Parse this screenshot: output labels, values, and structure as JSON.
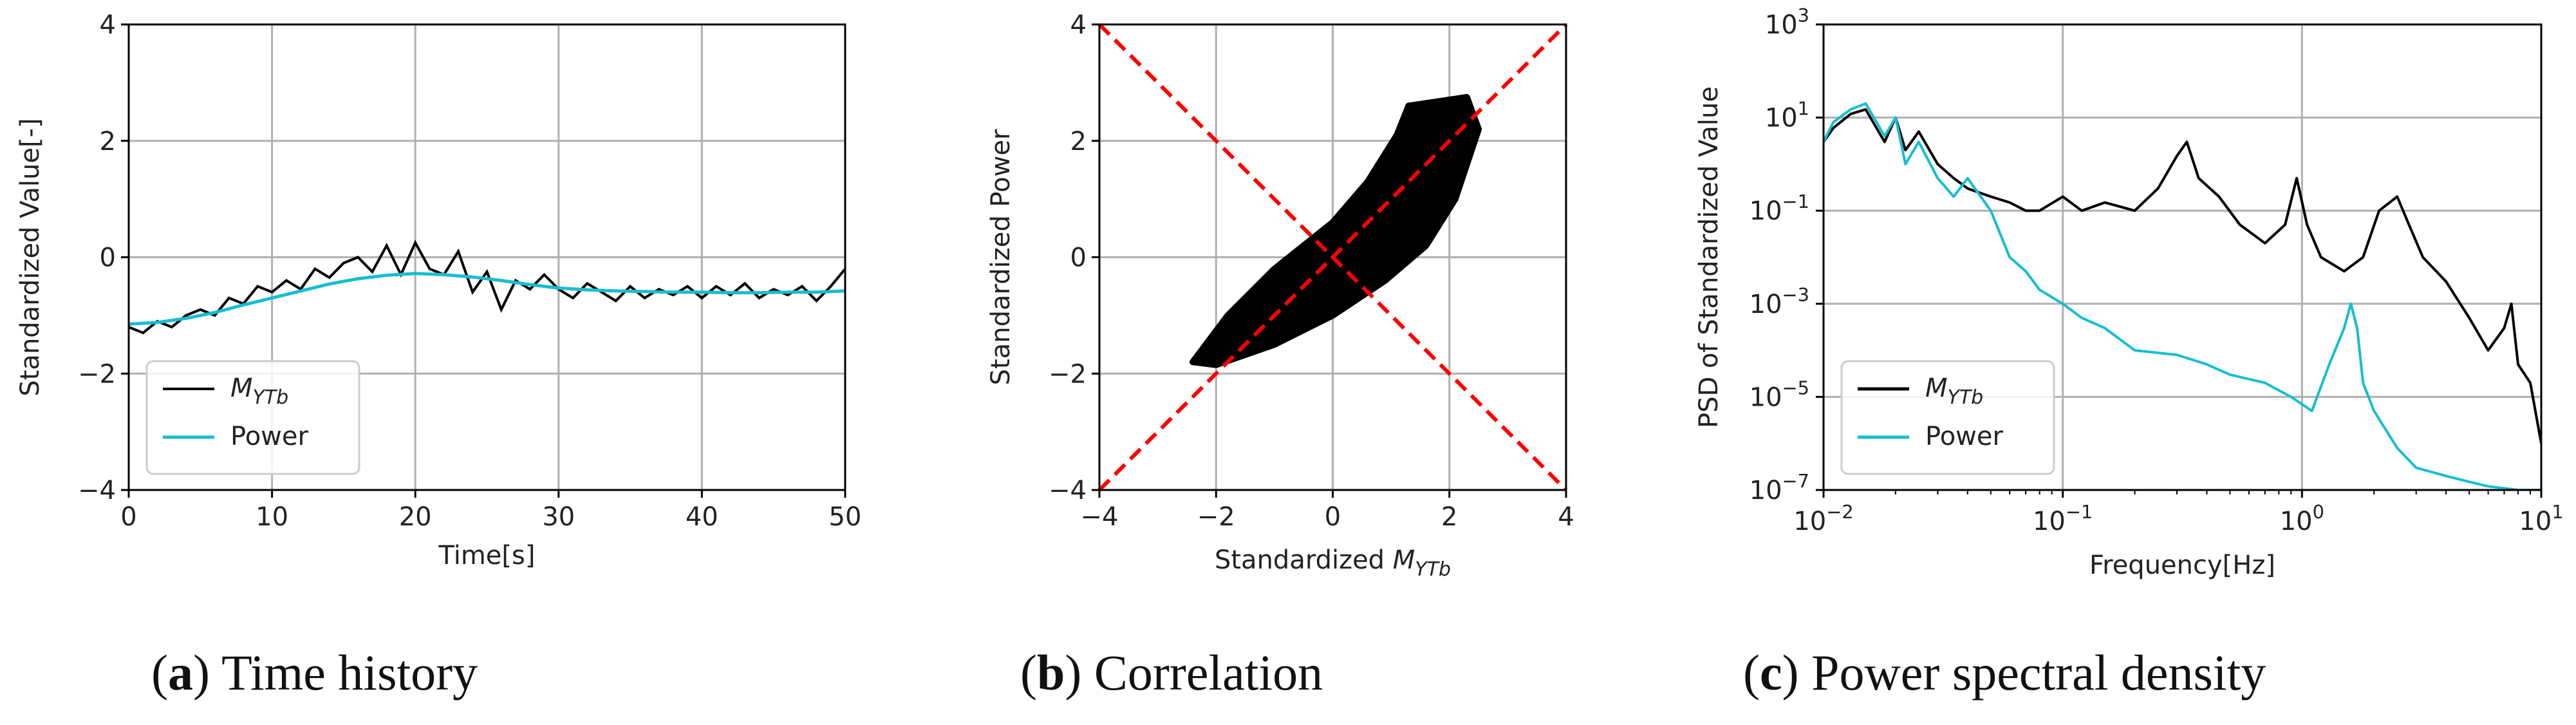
{
  "chart_data": [
    {
      "id": "a",
      "type": "line",
      "caption": {
        "letter": "a",
        "text": "Time history"
      },
      "xlabel": "Time[s]",
      "ylabel": "Standardized Value[-]",
      "xlim": [
        0,
        50
      ],
      "ylim": [
        -4,
        4
      ],
      "xticks": [
        0,
        10,
        20,
        30,
        40,
        50
      ],
      "yticks": [
        -4,
        -2,
        0,
        2,
        4
      ],
      "grid": true,
      "legend": {
        "position": "bottom-left",
        "entries": [
          {
            "label": "M",
            "sub": "YTb",
            "color": "#000000"
          },
          {
            "label": "Power",
            "color": "#17becf"
          }
        ]
      },
      "series": [
        {
          "name": "M_YTb",
          "color": "#000000",
          "x": [
            0,
            1,
            2,
            3,
            4,
            5,
            6,
            7,
            8,
            9,
            10,
            11,
            12,
            13,
            14,
            15,
            16,
            17,
            18,
            19,
            20,
            21,
            22,
            23,
            24,
            25,
            26,
            27,
            28,
            29,
            30,
            31,
            32,
            33,
            34,
            35,
            36,
            37,
            38,
            39,
            40,
            41,
            42,
            43,
            44,
            45,
            46,
            47,
            48,
            49,
            50
          ],
          "y": [
            -1.2,
            -1.3,
            -1.1,
            -1.2,
            -1.0,
            -0.9,
            -1.0,
            -0.7,
            -0.8,
            -0.5,
            -0.6,
            -0.4,
            -0.55,
            -0.2,
            -0.35,
            -0.1,
            0.0,
            -0.25,
            0.2,
            -0.3,
            0.25,
            -0.2,
            -0.3,
            0.1,
            -0.6,
            -0.25,
            -0.9,
            -0.4,
            -0.55,
            -0.3,
            -0.55,
            -0.7,
            -0.45,
            -0.6,
            -0.75,
            -0.5,
            -0.7,
            -0.55,
            -0.65,
            -0.5,
            -0.7,
            -0.5,
            -0.65,
            -0.45,
            -0.7,
            -0.55,
            -0.65,
            -0.5,
            -0.75,
            -0.5,
            -0.2
          ]
        },
        {
          "name": "Power",
          "color": "#17becf",
          "x": [
            0,
            2,
            4,
            6,
            8,
            10,
            12,
            14,
            16,
            18,
            20,
            22,
            24,
            26,
            28,
            30,
            32,
            34,
            36,
            38,
            40,
            42,
            44,
            46,
            48,
            50
          ],
          "y": [
            -1.15,
            -1.12,
            -1.05,
            -0.95,
            -0.82,
            -0.7,
            -0.58,
            -0.46,
            -0.37,
            -0.31,
            -0.28,
            -0.3,
            -0.34,
            -0.4,
            -0.47,
            -0.53,
            -0.56,
            -0.58,
            -0.59,
            -0.6,
            -0.6,
            -0.61,
            -0.61,
            -0.6,
            -0.6,
            -0.58
          ]
        }
      ]
    },
    {
      "id": "b",
      "type": "scatter",
      "caption": {
        "letter": "b",
        "text": "Correlation"
      },
      "xlabel": {
        "prefix": "Standardized ",
        "symbol": "M",
        "sub": "YTb"
      },
      "ylabel": "Standardized Power",
      "xlim": [
        -4,
        4
      ],
      "ylim": [
        -4,
        4
      ],
      "xticks": [
        -4,
        -2,
        0,
        2,
        4
      ],
      "yticks": [
        -4,
        -2,
        0,
        2,
        4
      ],
      "grid": true,
      "reference_lines": [
        {
          "from": [
            -4,
            -4
          ],
          "to": [
            4,
            4
          ],
          "color": "#ff0000",
          "style": "dashed"
        },
        {
          "from": [
            -4,
            4
          ],
          "to": [
            4,
            -4
          ],
          "color": "#ff0000",
          "style": "dashed"
        }
      ],
      "point_cloud_outline": [
        [
          -2.4,
          -1.8
        ],
        [
          -1.8,
          -1.0
        ],
        [
          -1.0,
          -0.2
        ],
        [
          0.0,
          0.6
        ],
        [
          0.6,
          1.3
        ],
        [
          1.1,
          2.1
        ],
        [
          1.3,
          2.6
        ],
        [
          2.3,
          2.75
        ],
        [
          2.5,
          2.2
        ],
        [
          2.1,
          1.0
        ],
        [
          1.6,
          0.2
        ],
        [
          0.9,
          -0.4
        ],
        [
          0.0,
          -1.0
        ],
        [
          -1.0,
          -1.5
        ],
        [
          -2.0,
          -1.85
        ]
      ],
      "color": "#000000"
    },
    {
      "id": "c",
      "type": "line",
      "scale": "log-log",
      "caption": {
        "letter": "c",
        "text": "Power spectral density"
      },
      "xlabel": "Frequency[Hz]",
      "ylabel": "PSD of Standardized Value",
      "xlim": [
        0.01,
        10
      ],
      "ylim": [
        1e-07,
        1000
      ],
      "xticks": [
        {
          "base": "10",
          "exp": "−2"
        },
        {
          "base": "10",
          "exp": "−1"
        },
        {
          "base": "10",
          "exp": "0"
        },
        {
          "base": "10",
          "exp": "1"
        }
      ],
      "yticks": [
        {
          "base": "10",
          "exp": "−7"
        },
        {
          "base": "10",
          "exp": "−5"
        },
        {
          "base": "10",
          "exp": "−3"
        },
        {
          "base": "10",
          "exp": "−1"
        },
        {
          "base": "10",
          "exp": "1"
        },
        {
          "base": "10",
          "exp": "3"
        }
      ],
      "grid": true,
      "legend": {
        "position": "bottom-left",
        "entries": [
          {
            "label": "M",
            "sub": "YTb",
            "color": "#000000"
          },
          {
            "label": "Power",
            "color": "#17becf"
          }
        ]
      },
      "series": [
        {
          "name": "M_YTb",
          "color": "#000000",
          "x": [
            0.01,
            0.011,
            0.013,
            0.015,
            0.018,
            0.02,
            0.022,
            0.025,
            0.03,
            0.035,
            0.04,
            0.05,
            0.06,
            0.07,
            0.08,
            0.1,
            0.12,
            0.15,
            0.2,
            0.25,
            0.3,
            0.33,
            0.37,
            0.45,
            0.55,
            0.7,
            0.85,
            0.95,
            1.05,
            1.2,
            1.5,
            1.8,
            2.1,
            2.5,
            2.8,
            3.2,
            4.0,
            5.0,
            6.0,
            7.0,
            7.5,
            8.0,
            9.0,
            10.0
          ],
          "y": [
            3,
            6,
            12,
            15,
            3,
            10,
            2,
            5,
            1,
            0.5,
            0.3,
            0.2,
            0.15,
            0.1,
            0.1,
            0.2,
            0.1,
            0.15,
            0.1,
            0.3,
            1.5,
            3,
            0.5,
            0.2,
            0.05,
            0.02,
            0.05,
            0.5,
            0.05,
            0.01,
            0.005,
            0.01,
            0.1,
            0.2,
            0.05,
            0.01,
            0.003,
            0.0005,
            0.0001,
            0.0003,
            0.001,
            5e-05,
            2e-05,
            1e-06
          ]
        },
        {
          "name": "Power",
          "color": "#17becf",
          "x": [
            0.01,
            0.011,
            0.013,
            0.015,
            0.018,
            0.02,
            0.022,
            0.025,
            0.03,
            0.035,
            0.04,
            0.05,
            0.06,
            0.07,
            0.08,
            0.1,
            0.12,
            0.15,
            0.2,
            0.3,
            0.4,
            0.5,
            0.7,
            0.9,
            1.1,
            1.3,
            1.5,
            1.6,
            1.7,
            1.8,
            2.0,
            2.5,
            3.0,
            4.0,
            5.0,
            6.0,
            8.0,
            10.0
          ],
          "y": [
            3,
            8,
            15,
            20,
            4,
            10,
            1,
            3,
            0.5,
            0.2,
            0.5,
            0.1,
            0.01,
            0.005,
            0.002,
            0.001,
            0.0005,
            0.0003,
            0.0001,
            8e-05,
            5e-05,
            3e-05,
            2e-05,
            1e-05,
            5e-06,
            5e-05,
            0.0003,
            0.001,
            0.0003,
            2e-05,
            5e-06,
            8e-07,
            3e-07,
            2e-07,
            1.5e-07,
            1.2e-07,
            1e-07,
            1e-07
          ]
        }
      ]
    }
  ]
}
